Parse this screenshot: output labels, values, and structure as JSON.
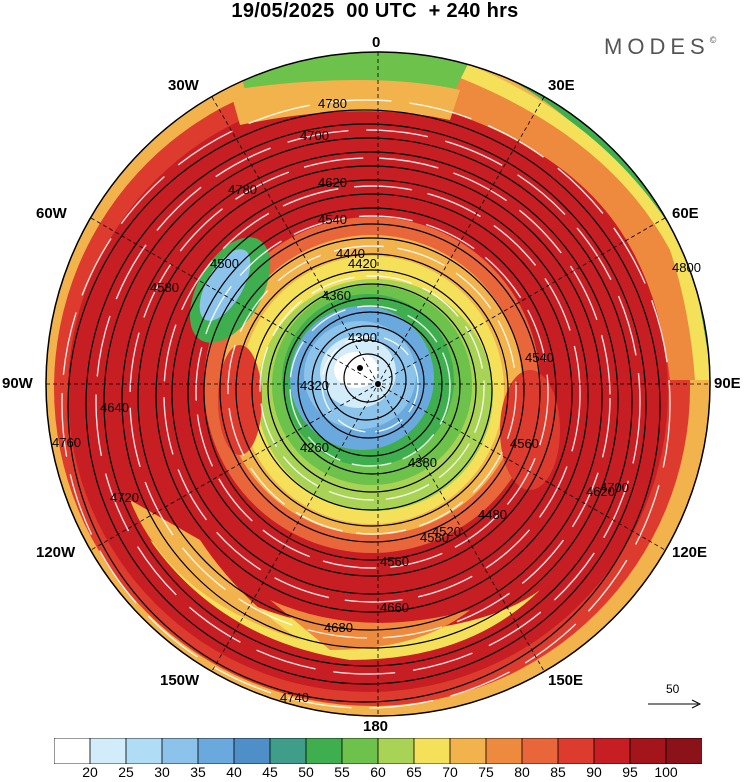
{
  "title": "19/05/2025  00 UTC  + 240 hrs",
  "brand": "MODES",
  "brand_mark": "©",
  "longitude_labels": {
    "lon_0": "0",
    "lon_30e": "30E",
    "lon_60e": "60E",
    "lon_90e": "90E",
    "lon_120e": "120E",
    "lon_150e": "150E",
    "lon_180": "180",
    "lon_150w": "150W",
    "lon_120w": "120W",
    "lon_90w": "90W",
    "lon_60w": "60W",
    "lon_30w": "30W"
  },
  "wind_reference": {
    "label": "50"
  },
  "colorbar": {
    "colors": [
      "#ffffff",
      "#d2ecfa",
      "#b0dcf5",
      "#8cc3ea",
      "#6aa9dd",
      "#4f8fc8",
      "#3f9e8a",
      "#3fae4e",
      "#6cc24a",
      "#a9d354",
      "#f5e05a",
      "#f3b34c",
      "#ee8a3e",
      "#e8663a",
      "#dc3b2d",
      "#c71e23",
      "#a3151b",
      "#8b1218"
    ],
    "tick_labels": [
      "20",
      "25",
      "30",
      "35",
      "40",
      "45",
      "50",
      "55",
      "60",
      "65",
      "70",
      "75",
      "80",
      "85",
      "90",
      "95",
      "100"
    ]
  },
  "contour_labels": [
    "4780",
    "4700",
    "4620",
    "4540",
    "4440",
    "4360",
    "4300",
    "4320",
    "4260",
    "4380",
    "4480",
    "4560",
    "4660",
    "4680",
    "4740",
    "4760",
    "4720",
    "4640",
    "4580",
    "4500",
    "4780",
    "4800",
    "4540",
    "4620",
    "4700",
    "4560",
    "4580",
    "4420",
    "4520"
  ]
}
